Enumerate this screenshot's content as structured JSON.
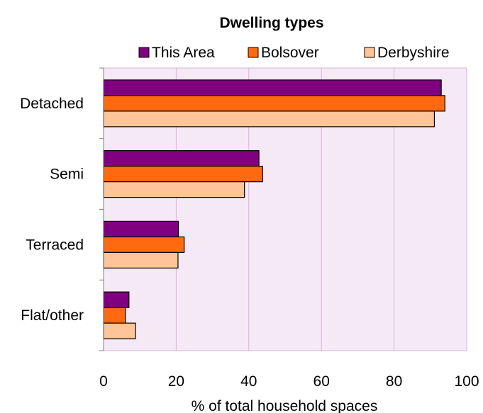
{
  "chart_data": {
    "type": "bar",
    "orientation": "horizontal",
    "title": "Dwelling types",
    "xlabel": "% of total household spaces",
    "ylabel": "",
    "categories": [
      "Detached",
      "Semi",
      "Terraced",
      "Flat/other"
    ],
    "series": [
      {
        "name": "This Area",
        "values": [
          93,
          42.8,
          20.6,
          7
        ],
        "color": "#800080"
      },
      {
        "name": "Bolsover",
        "values": [
          94,
          43.8,
          22.2,
          6
        ],
        "color": "#FF6A10"
      },
      {
        "name": "Derbyshire",
        "values": [
          91.1,
          38.8,
          20.5,
          8.8
        ],
        "color": "#FFC497"
      }
    ],
    "xlim": [
      0,
      100
    ],
    "x_ticks": [
      "0",
      "20",
      "40",
      "60",
      "80",
      "100"
    ],
    "grid": true,
    "legend_position": "top",
    "plot_background": "#F6E9F6",
    "gridline_color": "#D9B2D9"
  }
}
